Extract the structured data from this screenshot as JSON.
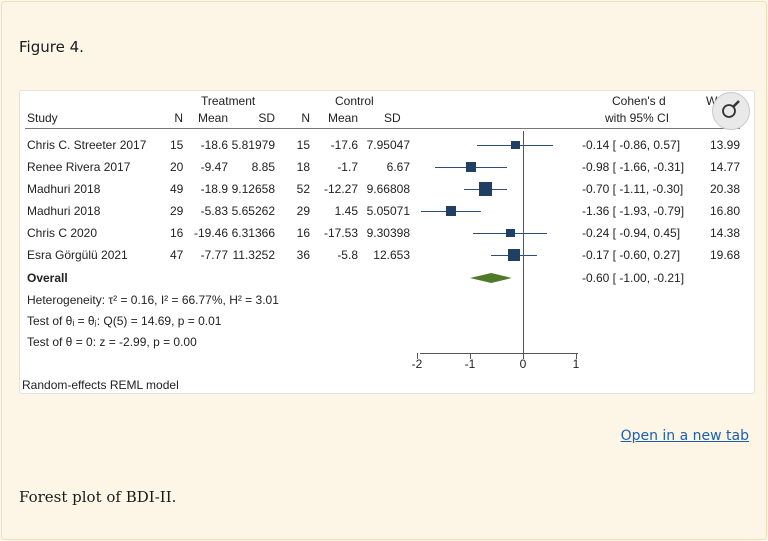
{
  "figure_label": "Figure 4.",
  "caption": "Forest plot of BDI-II.",
  "open_link": "Open in a new tab",
  "forest": {
    "headers": {
      "treatment": "Treatment",
      "control": "Control",
      "study": "Study",
      "n1": "N",
      "mean1": "Mean",
      "sd1": "SD",
      "n2": "N",
      "mean2": "Mean",
      "sd2": "SD",
      "effect_top": "Cohen's d",
      "effect_bottom": "with 95% CI",
      "weight_top": "Weight",
      "weight_bottom": "(%)"
    },
    "rows": [
      {
        "study": "Chris C. Streeter 2017",
        "n1": "15",
        "mean1": "-18.6",
        "sd1": "5.81979",
        "n2": "15",
        "mean2": "-17.6",
        "sd2": "7.95047",
        "ci": "-0.14 [ -0.86,  0.57]",
        "weight": "13.99",
        "d": -0.14,
        "lo": -0.86,
        "hi": 0.57,
        "w": 13.99
      },
      {
        "study": "Renee Rivera 2017",
        "n1": "20",
        "mean1": "-9.47",
        "sd1": "8.85",
        "n2": "18",
        "mean2": "-1.7",
        "sd2": "6.67",
        "ci": "-0.98 [ -1.66, -0.31]",
        "weight": "14.77",
        "d": -0.98,
        "lo": -1.66,
        "hi": -0.31,
        "w": 14.77
      },
      {
        "study": "Madhuri 2018",
        "n1": "49",
        "mean1": "-18.9",
        "sd1": "9.12658",
        "n2": "52",
        "mean2": "-12.27",
        "sd2": "9.66808",
        "ci": "-0.70 [ -1.11, -0.30]",
        "weight": "20.38",
        "d": -0.7,
        "lo": -1.11,
        "hi": -0.3,
        "w": 20.38
      },
      {
        "study": "Madhuri 2018",
        "n1": "29",
        "mean1": "-5.83",
        "sd1": "5.65262",
        "n2": "29",
        "mean2": "1.45",
        "sd2": "5.05071",
        "ci": "-1.36 [ -1.93, -0.79]",
        "weight": "16.80",
        "d": -1.36,
        "lo": -1.93,
        "hi": -0.79,
        "w": 16.8
      },
      {
        "study": "Chris C 2020",
        "n1": "16",
        "mean1": "-19.46",
        "sd1": "6.31366",
        "n2": "16",
        "mean2": "-17.53",
        "sd2": "9.30398",
        "ci": "-0.24 [ -0.94,  0.45]",
        "weight": "14.38",
        "d": -0.24,
        "lo": -0.94,
        "hi": 0.45,
        "w": 14.38
      },
      {
        "study": "Esra Görgülü 2021",
        "n1": "47",
        "mean1": "-7.77",
        "sd1": "11.3252",
        "n2": "36",
        "mean2": "-5.8",
        "sd2": "12.653",
        "ci": "-0.17 [ -0.60,  0.27]",
        "weight": "19.68",
        "d": -0.17,
        "lo": -0.6,
        "hi": 0.27,
        "w": 19.68
      }
    ],
    "overall": {
      "label": "Overall",
      "ci": "-0.60 [ -1.00, -0.21]",
      "d": -0.6,
      "lo": -1.0,
      "hi": -0.21
    },
    "heterogeneity": "Heterogeneity: τ² = 0.16, I² = 66.77%, H² = 3.01",
    "test_theta_i": "Test of θᵢ = θⱼ: Q(5) = 14.69, p = 0.01",
    "test_theta": "Test of θ = 0: z = -2.99, p = 0.00",
    "model": "Random-effects REML model",
    "axis_ticks": [
      "-2",
      "-1",
      "0",
      "1"
    ],
    "axis_values": [
      -2,
      -1,
      0,
      1
    ],
    "xlim": [
      -2,
      1
    ],
    "colors": {
      "marker": "#1f3f63",
      "diamond": "#4f7a2a"
    }
  }
}
